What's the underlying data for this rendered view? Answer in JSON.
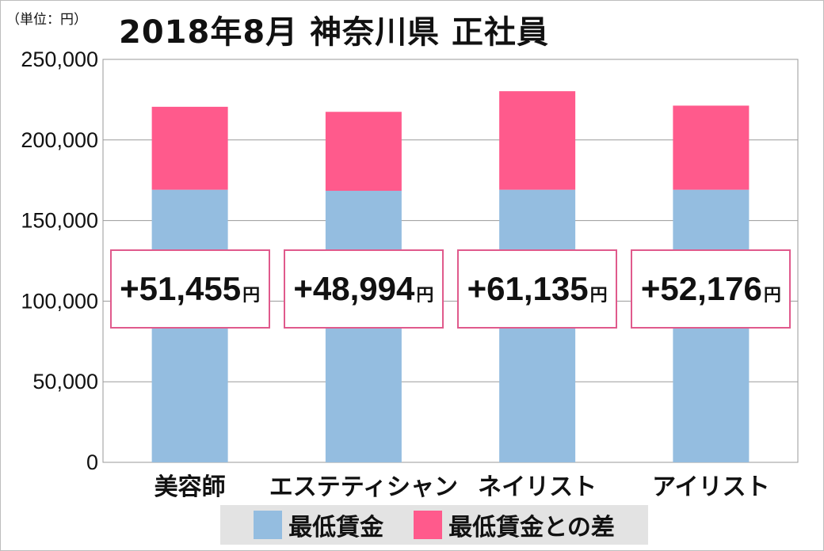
{
  "unit_label": "（単位：円）",
  "title": "2018年8月 神奈川県 正社員",
  "chart_data": {
    "type": "bar",
    "stacked": true,
    "categories": [
      "美容師",
      "エステティシャン",
      "ネイリスト",
      "アイリスト"
    ],
    "series": [
      {
        "name": "最低賃金",
        "color": "#94bde0",
        "values": [
          169130,
          168460,
          169130,
          169130
        ]
      },
      {
        "name": "最低賃金との差",
        "color": "#ff5a8c",
        "values": [
          51455,
          48994,
          61135,
          52176
        ]
      }
    ],
    "ylim": [
      0,
      250000
    ],
    "yticks": [
      0,
      50000,
      100000,
      150000,
      200000,
      250000
    ],
    "ytick_labels": [
      "0",
      "50,000",
      "100,000",
      "150,000",
      "200,000",
      "250,000"
    ],
    "grid": true,
    "legend": "bottom",
    "annotations": [
      "+51,455",
      "+48,994",
      "+61,135",
      "+52,176"
    ],
    "annotation_unit": "円"
  }
}
